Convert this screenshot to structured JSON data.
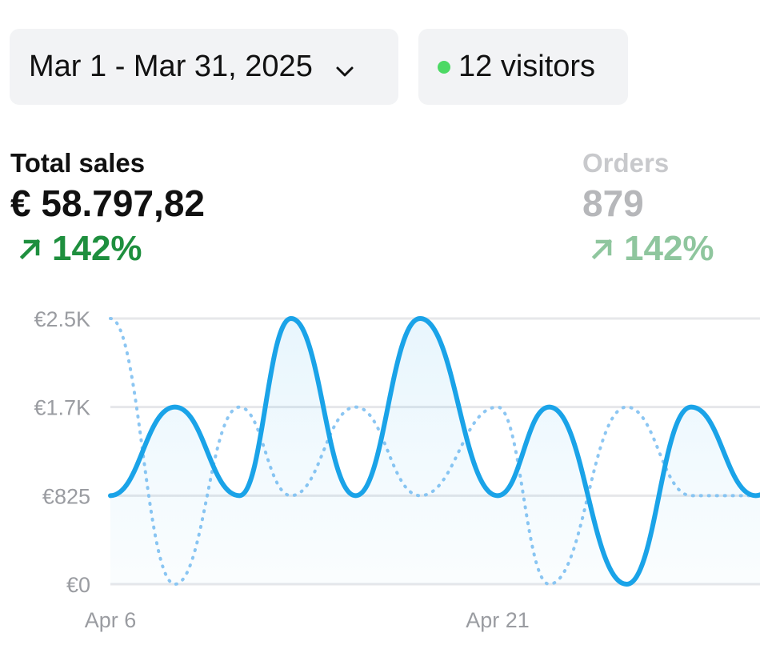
{
  "date_range": {
    "label": "Mar 1 - Mar 31, 2025",
    "icon": "chevron-down-icon"
  },
  "visitors": {
    "label": "12 visitors",
    "status_color": "#4cd964",
    "icon": "live-dot-icon"
  },
  "metrics": {
    "total_sales": {
      "label": "Total sales",
      "value": "€ 58.797,82",
      "change": "142%",
      "direction": "up",
      "color": "#1e8f3e"
    },
    "orders": {
      "label": "Orders",
      "value": "879",
      "change": "142%",
      "direction": "up",
      "color": "#8fc69e"
    }
  },
  "chart_data": {
    "type": "line",
    "title": "",
    "xlabel": "",
    "ylabel": "",
    "x_tick_labels": [
      "Apr 6",
      "Apr 21"
    ],
    "y_tick_labels": [
      "€0",
      "€825",
      "€1.7K",
      "€2.5K"
    ],
    "y_ticks": [
      0,
      825,
      1650,
      2475
    ],
    "ylim": [
      0,
      2475
    ],
    "x_days": [
      6,
      8.5,
      11,
      13,
      15.5,
      18,
      21,
      23,
      26,
      28.5,
      31,
      33.5
    ],
    "x_tick_days": [
      6,
      21
    ],
    "series": [
      {
        "style": "solid",
        "color": "#1aa3e8",
        "fill": true,
        "values": [
          825,
          1650,
          825,
          2475,
          825,
          2475,
          825,
          1650,
          0,
          1650,
          825,
          1650
        ]
      },
      {
        "style": "dotted",
        "color": "#8cc6f2",
        "fill": false,
        "values": [
          2475,
          0,
          1650,
          825,
          1650,
          825,
          1650,
          0,
          1650,
          825,
          825,
          825
        ]
      }
    ],
    "grid": true
  }
}
